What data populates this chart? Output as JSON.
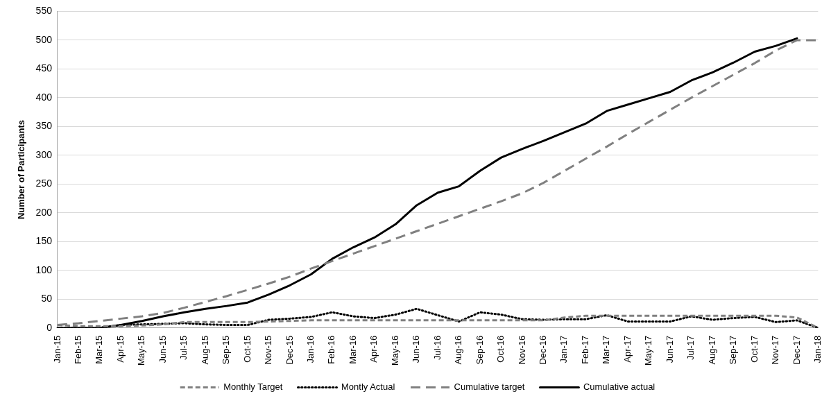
{
  "chart_data": {
    "type": "line",
    "ylabel": "Number of Participants",
    "categories": [
      "Jan-15",
      "Feb-15",
      "Mar-15",
      "Apr-15",
      "May-15",
      "Jun-15",
      "Jul-15",
      "Aug-15",
      "Sep-15",
      "Oct-15",
      "Nov-15",
      "Dec-15",
      "Jan-16",
      "Feb-16",
      "Mar-16",
      "Apr-16",
      "May-16",
      "Jun-16",
      "Jul-16",
      "Aug-16",
      "Sep-16",
      "Oct-16",
      "Nov-16",
      "Dec-16",
      "Jan-17",
      "Feb-17",
      "Mar-17",
      "Apr-17",
      "May-17",
      "Jun-17",
      "Jul-17",
      "Aug-17",
      "Sep-17",
      "Oct-17",
      "Nov-17",
      "Dec-17",
      "Jan-18"
    ],
    "ylim": [
      0,
      550
    ],
    "yticks": [
      0,
      50,
      100,
      150,
      200,
      250,
      300,
      350,
      400,
      450,
      500,
      550
    ],
    "grid": "y",
    "legend": "bottom",
    "marker": "none",
    "series": [
      {
        "name": "Monthly Target",
        "color": "#808080",
        "line_style": "dashed",
        "values": [
          5,
          3,
          3,
          3,
          4,
          6,
          10,
          10,
          10,
          10,
          11,
          12,
          13,
          13,
          13,
          13,
          13,
          13,
          13,
          13,
          13,
          13,
          13,
          13,
          18,
          21,
          21,
          21,
          21,
          21,
          21,
          21,
          21,
          21,
          21,
          18,
          0
        ]
      },
      {
        "name": "Montly Actual",
        "color": "#000000",
        "line_style": "dotted",
        "values": [
          0,
          0,
          0,
          5,
          6,
          7,
          8,
          6,
          5,
          5,
          14,
          16,
          19,
          27,
          20,
          17,
          23,
          33,
          22,
          11,
          27,
          23,
          15,
          14,
          15,
          15,
          22,
          11,
          11,
          11,
          20,
          14,
          17,
          19,
          10,
          13,
          0
        ]
      },
      {
        "name": "Cumulative target",
        "color": "#808080",
        "line_style": "long dashed",
        "values": [
          5,
          8,
          12,
          16,
          20,
          26,
          35,
          45,
          55,
          66,
          77,
          89,
          103,
          116,
          129,
          142,
          155,
          168,
          181,
          194,
          207,
          220,
          234,
          252,
          273,
          294,
          315,
          337,
          358,
          379,
          400,
          420,
          440,
          460,
          482,
          500,
          500
        ]
      },
      {
        "name": "Cumulative actual",
        "color": "#000000",
        "line_style": "solid",
        "values": [
          0,
          0,
          0,
          5,
          12,
          20,
          27,
          33,
          38,
          44,
          58,
          74,
          93,
          120,
          140,
          157,
          180,
          213,
          235,
          246,
          273,
          296,
          311,
          325,
          340,
          355,
          377,
          388,
          399,
          410,
          430,
          444,
          461,
          480,
          490,
          503,
          null
        ]
      }
    ]
  }
}
